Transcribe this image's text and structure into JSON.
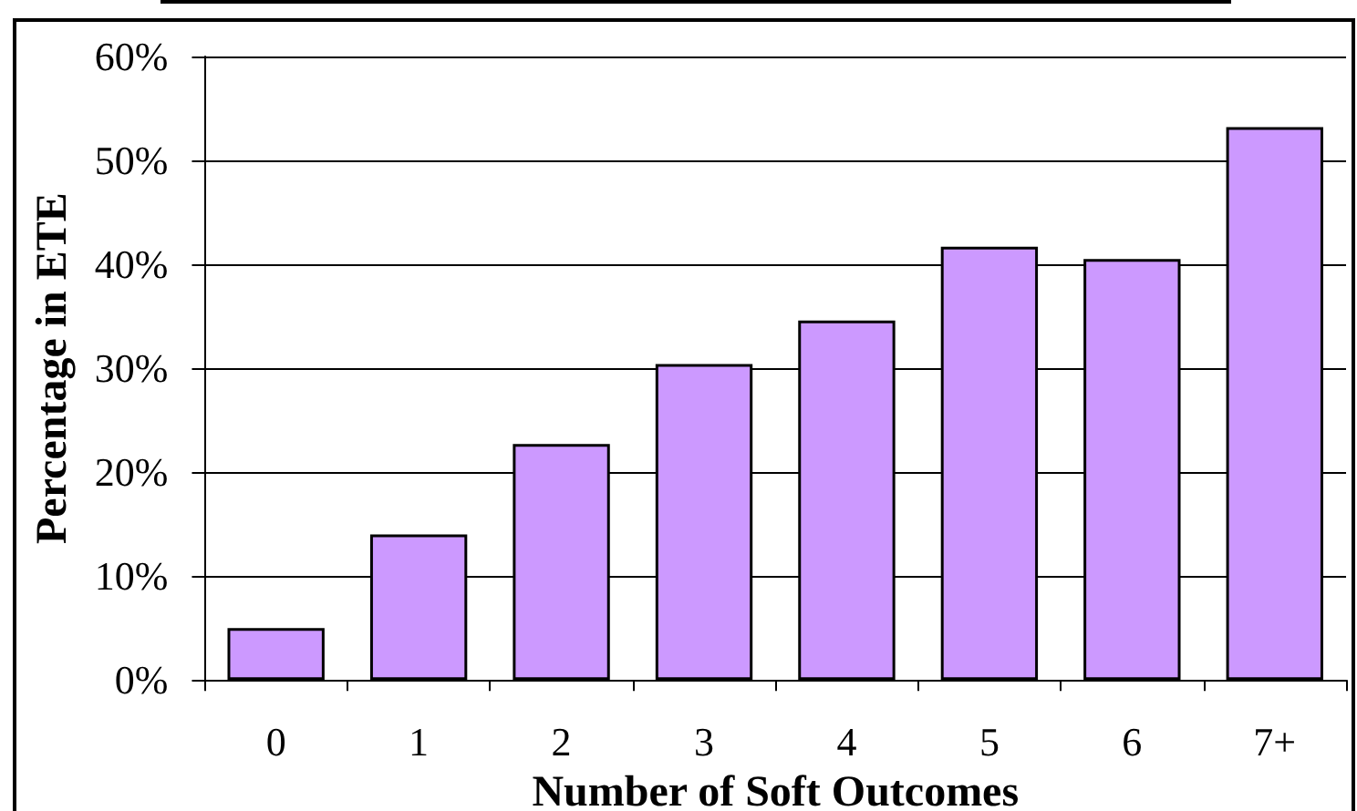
{
  "chart_data": {
    "type": "bar",
    "xlabel": "Number of Soft Outcomes",
    "ylabel": "Percentage in ETE",
    "categories": [
      "0",
      "1",
      "2",
      "3",
      "4",
      "5",
      "6",
      "7+"
    ],
    "values": [
      5,
      14,
      22.7,
      30.4,
      34.6,
      41.7,
      40.5,
      53.2
    ],
    "color": "#cc99ff",
    "ylim": [
      0,
      60
    ],
    "yticks": [
      {
        "value": 0,
        "label": "0%"
      },
      {
        "value": 10,
        "label": "10%"
      },
      {
        "value": 20,
        "label": "20%"
      },
      {
        "value": 30,
        "label": "30%"
      },
      {
        "value": 40,
        "label": "40%"
      },
      {
        "value": 50,
        "label": "50%"
      },
      {
        "value": 60,
        "label": "60%"
      }
    ],
    "grid": "y"
  }
}
